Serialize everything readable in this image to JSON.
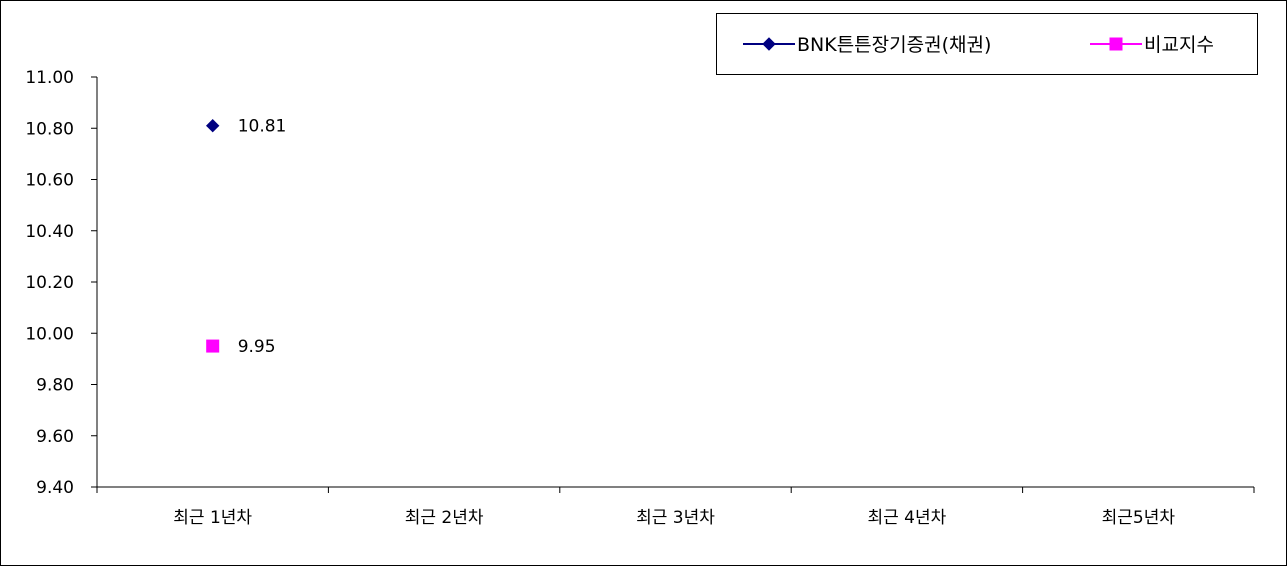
{
  "chart_data": {
    "type": "line",
    "title": "",
    "xlabel": "",
    "ylabel": "",
    "categories": [
      "최근 1년차",
      "최근 2년차",
      "최근 3년차",
      "최근 4년차",
      "최근5년차"
    ],
    "ylim": [
      9.4,
      11.0
    ],
    "ytick_step": 0.2,
    "ytick_labels": [
      "9.40",
      "9.60",
      "9.80",
      "10.00",
      "10.20",
      "10.40",
      "10.60",
      "10.80",
      "11.00"
    ],
    "grid": false,
    "legend_position": "top-right",
    "series": [
      {
        "name": "BNK튼튼장기증권(채권)",
        "color": "#000080",
        "marker": "diamond",
        "values": [
          10.81,
          null,
          null,
          null,
          null
        ],
        "data_labels": [
          "10.81",
          null,
          null,
          null,
          null
        ]
      },
      {
        "name": "비교지수",
        "color": "#ff00ff",
        "marker": "square",
        "values": [
          9.95,
          null,
          null,
          null,
          null
        ],
        "data_labels": [
          "9.95",
          null,
          null,
          null,
          null
        ]
      }
    ]
  }
}
